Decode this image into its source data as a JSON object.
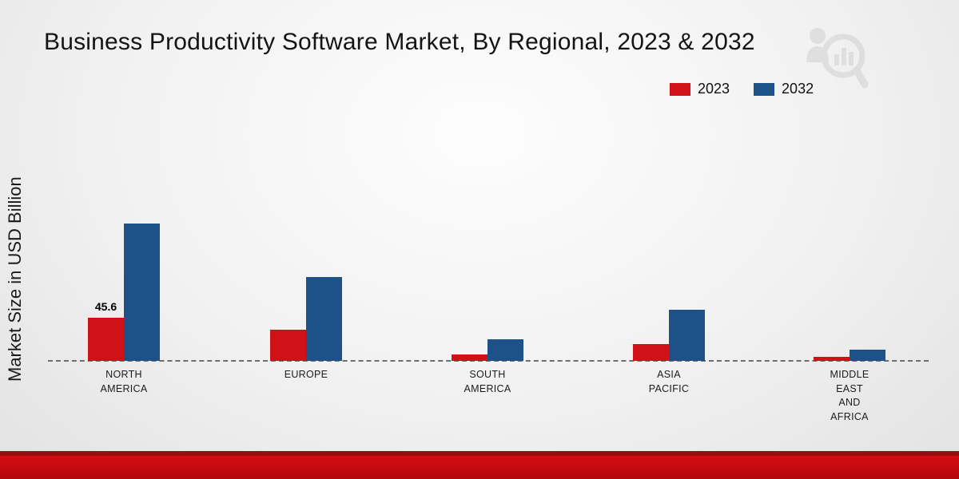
{
  "page": {
    "title": "Business Productivity Software Market, By Regional, 2023 & 2032",
    "ylabel": "Market Size in USD Billion"
  },
  "legend": {
    "items": [
      {
        "label": "2023",
        "color": "#d01117"
      },
      {
        "label": "2032",
        "color": "#1d5288"
      }
    ],
    "position": "top-right"
  },
  "colors": {
    "bar_2023": "#d01117",
    "bar_2032": "#1d5288",
    "baseline": "#6e6e6e",
    "footer_band": "#d60d12",
    "footer_band_dark": "#9c0b0f"
  },
  "chart_data": {
    "type": "bar",
    "title": "Business Productivity Software Market, By Regional, 2023 & 2032",
    "xlabel": "",
    "ylabel": "Market Size in USD Billion",
    "categories": [
      "NORTH AMERICA",
      "EUROPE",
      "SOUTH AMERICA",
      "ASIA PACIFIC",
      "MIDDLE EAST AND AFRICA"
    ],
    "category_label_lines": [
      [
        "NORTH",
        "AMERICA"
      ],
      [
        "EUROPE"
      ],
      [
        "SOUTH",
        "AMERICA"
      ],
      [
        "ASIA",
        "PACIFIC"
      ],
      [
        "MIDDLE",
        "EAST",
        "AND",
        "AFRICA"
      ]
    ],
    "series": [
      {
        "name": "2023",
        "color": "#d01117",
        "values": [
          45.6,
          33,
          7,
          18,
          4
        ]
      },
      {
        "name": "2032",
        "color": "#1d5288",
        "values": [
          145,
          89,
          23,
          54,
          12
        ]
      }
    ],
    "data_labels": [
      {
        "series": "2023",
        "category": "NORTH AMERICA",
        "text": "45.6"
      }
    ],
    "ylim": [
      0,
      160
    ],
    "grid": false,
    "baseline_style": "dashed",
    "y_axis_ticks_visible": false,
    "legend_position": "top-right"
  }
}
